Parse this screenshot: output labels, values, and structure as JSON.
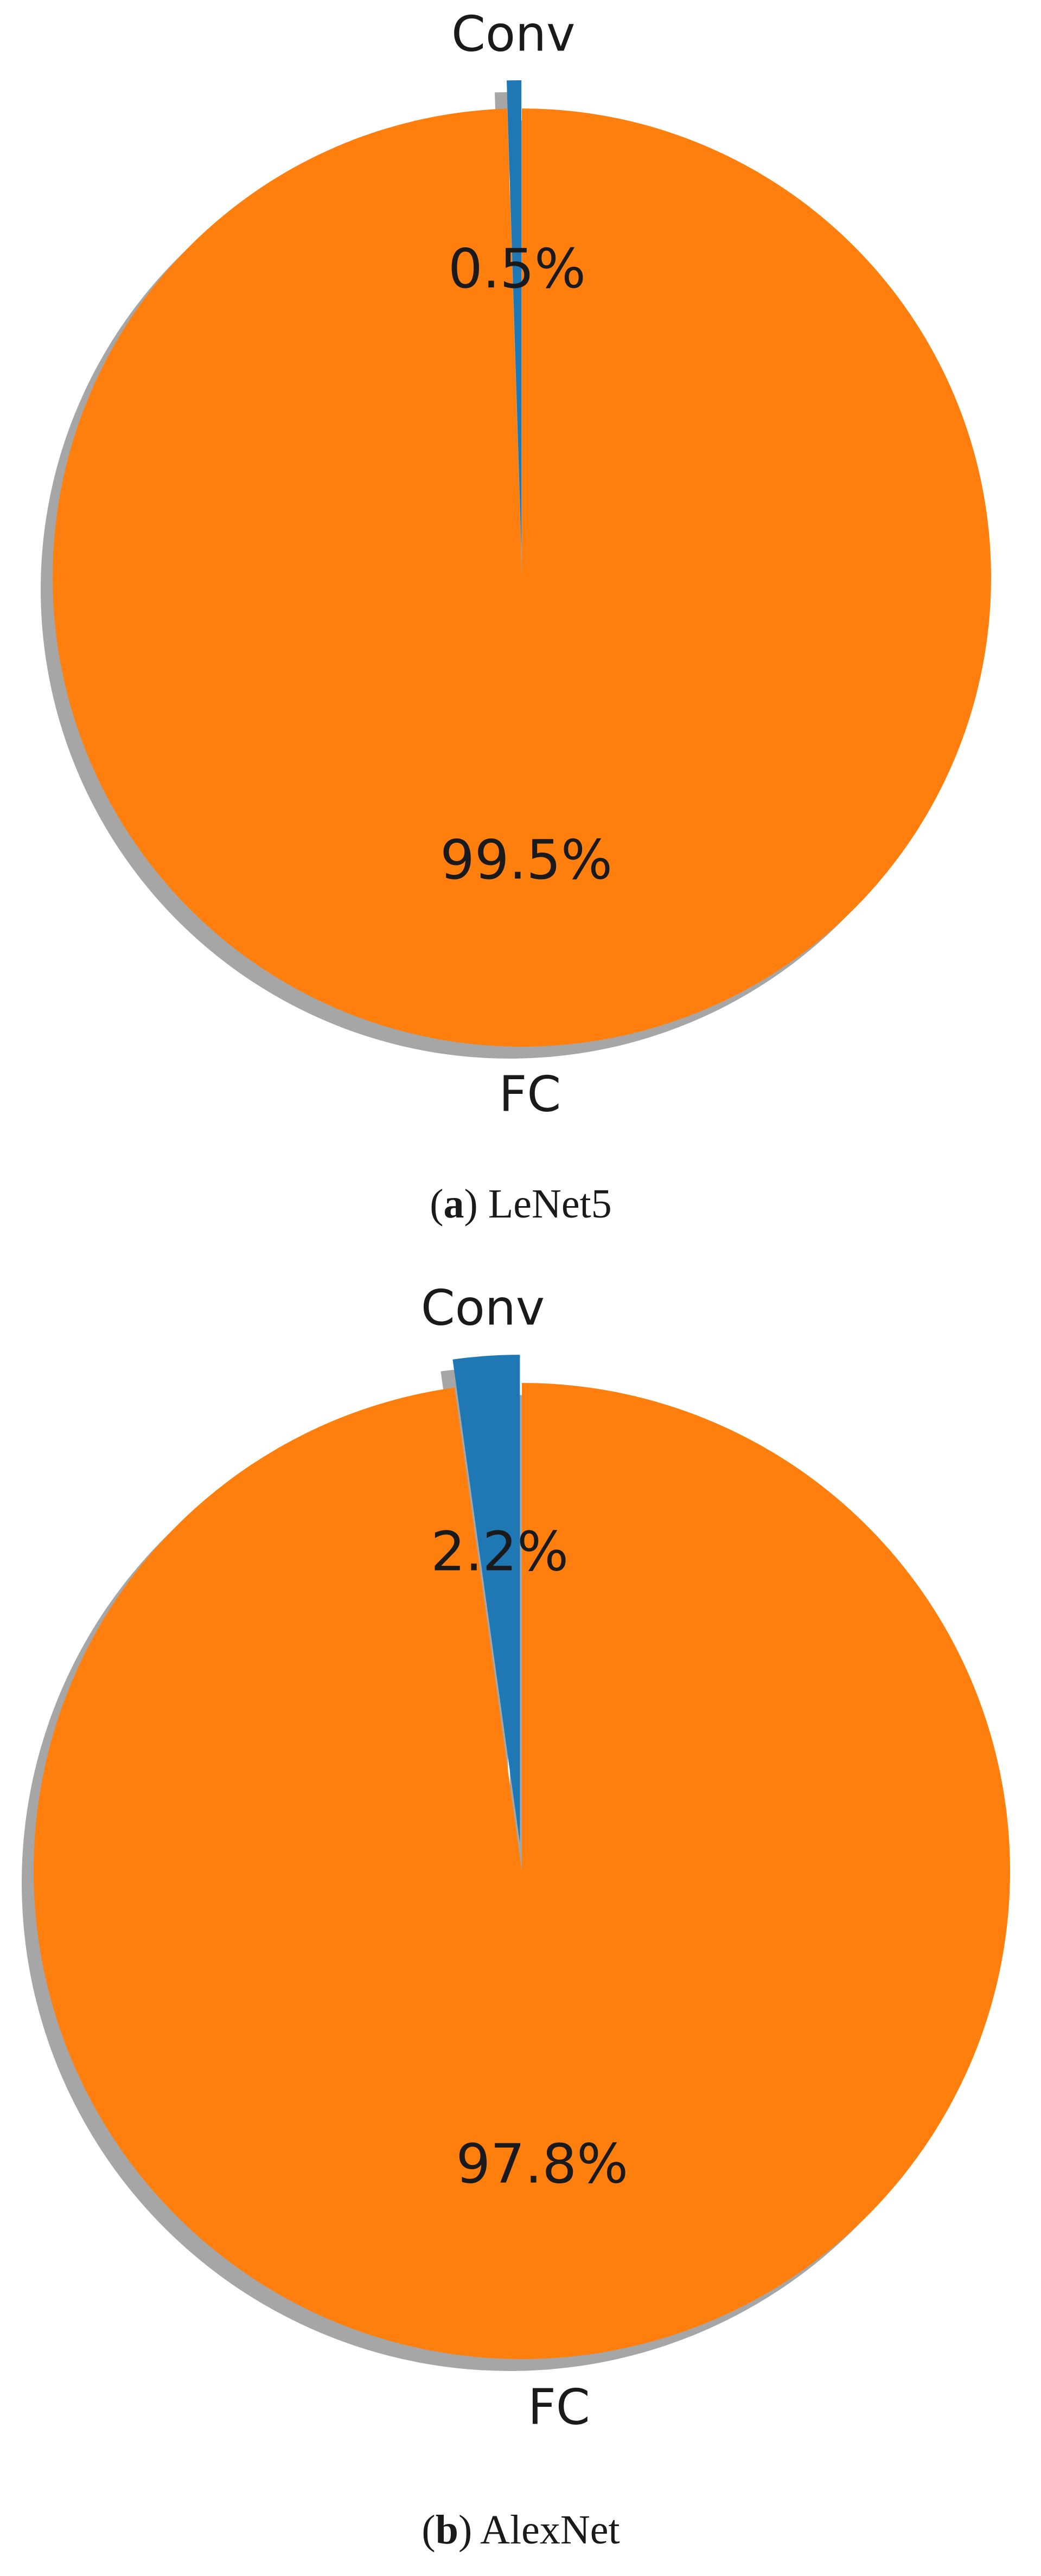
{
  "chart_data": [
    {
      "type": "pie",
      "caption_letter": "a",
      "caption_name": "LeNet5",
      "start_angle_deg": 90,
      "counterclock": true,
      "shadow": true,
      "slices": [
        {
          "label": "Conv",
          "value": 0.5,
          "pct_text": "0.5%",
          "color": "#1f77b4",
          "explode": true
        },
        {
          "label": "FC",
          "value": 99.5,
          "pct_text": "99.5%",
          "color": "#ff7f0e",
          "explode": false
        }
      ]
    },
    {
      "type": "pie",
      "caption_letter": "b",
      "caption_name": "AlexNet",
      "start_angle_deg": 90,
      "counterclock": true,
      "shadow": true,
      "slices": [
        {
          "label": "Conv",
          "value": 2.2,
          "pct_text": "2.2%",
          "color": "#1f77b4",
          "explode": true
        },
        {
          "label": "FC",
          "value": 97.8,
          "pct_text": "97.8%",
          "color": "#ff7f0e",
          "explode": false
        }
      ]
    }
  ]
}
